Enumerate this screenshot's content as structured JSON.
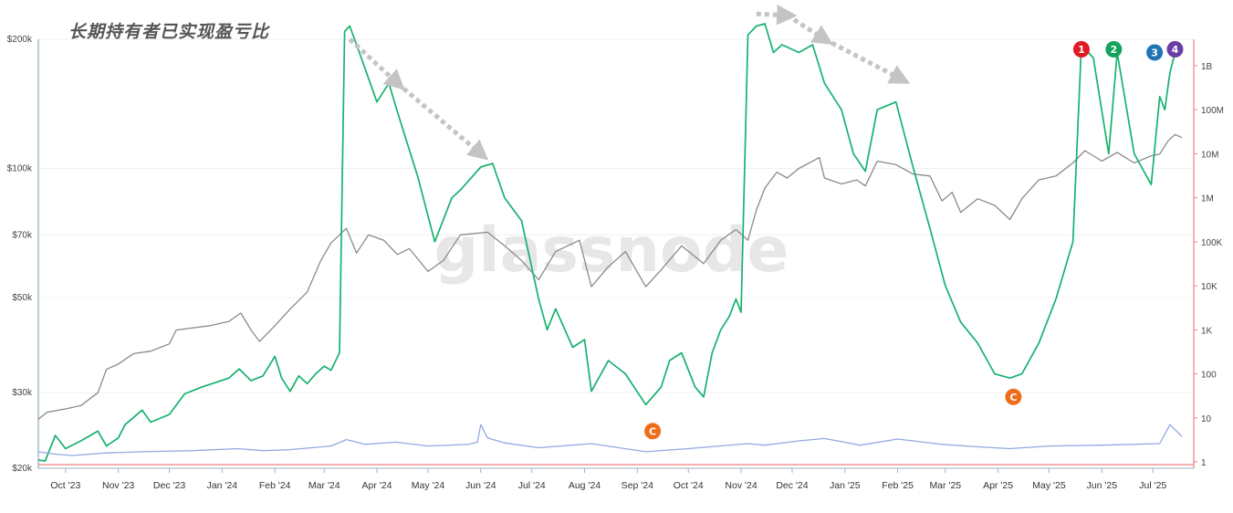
{
  "title": "长期持有者已实现盈亏比",
  "watermark": "glassnode",
  "colors": {
    "green": "#16b26f",
    "gray": "#8a8a8a",
    "blue": "#93a9e3",
    "red_axis": "#f08080",
    "arrow": "#c4c4c4",
    "badge_red": "#e01b24",
    "badge_green": "#13a35a",
    "badge_blue": "#1f74b5",
    "badge_purple": "#6b3da6",
    "badge_orange": "#ee6d1a"
  },
  "chart_data": {
    "type": "line",
    "title": "长期持有者已实现盈亏比",
    "x_ticks": [
      "Oct '23",
      "Nov '23",
      "Dec '23",
      "Jan '24",
      "Feb '24",
      "Mar '24",
      "Apr '24",
      "May '24",
      "Jun '24",
      "Jul '24",
      "Aug '24",
      "Sep '24",
      "Oct '24",
      "Nov '24",
      "Dec '24",
      "Jan '25",
      "Feb '25",
      "Mar '25",
      "Apr '25",
      "May '25",
      "Jun '25",
      "Jul '25"
    ],
    "x_range": [
      "2023-09-15",
      "2025-07-25"
    ],
    "y_left": {
      "scale": "log",
      "ticks": [
        "$20k",
        "$30k",
        "$50k",
        "$70k",
        "$100k",
        "$200k"
      ],
      "tick_values": [
        20000,
        30000,
        50000,
        70000,
        100000,
        200000
      ],
      "range": [
        20000,
        200000
      ]
    },
    "y_right": {
      "scale": "log",
      "ticks": [
        "1",
        "10",
        "100",
        "1K",
        "10K",
        "100K",
        "1M",
        "10M",
        "100M",
        "1B"
      ],
      "tick_values": [
        1,
        10,
        100,
        1000,
        10000,
        100000,
        1000000,
        10000000,
        100000000,
        1000000000
      ]
    },
    "series": [
      {
        "axis": "left",
        "color": "#8a8a8a",
        "points": [
          [
            "2023-09-15",
            26000
          ],
          [
            "2023-09-20",
            27000
          ],
          [
            "2023-10-01",
            27500
          ],
          [
            "2023-10-10",
            28000
          ],
          [
            "2023-10-20",
            30000
          ],
          [
            "2023-10-25",
            34000
          ],
          [
            "2023-11-01",
            35000
          ],
          [
            "2023-11-10",
            37000
          ],
          [
            "2023-11-20",
            37500
          ],
          [
            "2023-12-01",
            39000
          ],
          [
            "2023-12-05",
            42000
          ],
          [
            "2023-12-15",
            42500
          ],
          [
            "2023-12-25",
            43000
          ],
          [
            "2024-01-05",
            44000
          ],
          [
            "2024-01-12",
            46000
          ],
          [
            "2024-01-18",
            42000
          ],
          [
            "2024-01-23",
            39500
          ],
          [
            "2024-02-01",
            43000
          ],
          [
            "2024-02-10",
            47000
          ],
          [
            "2024-02-20",
            51500
          ],
          [
            "2024-02-28",
            61000
          ],
          [
            "2024-03-05",
            67000
          ],
          [
            "2024-03-10",
            70000
          ],
          [
            "2024-03-14",
            72500
          ],
          [
            "2024-03-20",
            63500
          ],
          [
            "2024-03-27",
            70000
          ],
          [
            "2024-04-05",
            68000
          ],
          [
            "2024-04-13",
            63000
          ],
          [
            "2024-04-20",
            65000
          ],
          [
            "2024-05-01",
            57500
          ],
          [
            "2024-05-10",
            61000
          ],
          [
            "2024-05-20",
            70000
          ],
          [
            "2024-06-05",
            71000
          ],
          [
            "2024-06-15",
            66000
          ],
          [
            "2024-06-25",
            61000
          ],
          [
            "2024-07-05",
            55000
          ],
          [
            "2024-07-15",
            64000
          ],
          [
            "2024-07-29",
            68000
          ],
          [
            "2024-08-05",
            53000
          ],
          [
            "2024-08-15",
            59000
          ],
          [
            "2024-08-25",
            64000
          ],
          [
            "2024-09-06",
            53000
          ],
          [
            "2024-09-15",
            58000
          ],
          [
            "2024-09-27",
            66000
          ],
          [
            "2024-10-10",
            60000
          ],
          [
            "2024-10-20",
            68000
          ],
          [
            "2024-10-29",
            72000
          ],
          [
            "2024-11-05",
            68000
          ],
          [
            "2024-11-10",
            80000
          ],
          [
            "2024-11-15",
            90000
          ],
          [
            "2024-11-22",
            98000
          ],
          [
            "2024-11-28",
            95000
          ],
          [
            "2024-12-05",
            100000
          ],
          [
            "2024-12-17",
            106000
          ],
          [
            "2024-12-20",
            95000
          ],
          [
            "2024-12-30",
            92000
          ],
          [
            "2025-01-08",
            94000
          ],
          [
            "2025-01-13",
            91000
          ],
          [
            "2025-01-20",
            104000
          ],
          [
            "2025-01-31",
            102000
          ],
          [
            "2025-02-10",
            97000
          ],
          [
            "2025-02-20",
            96000
          ],
          [
            "2025-02-27",
            84000
          ],
          [
            "2025-03-05",
            88000
          ],
          [
            "2025-03-10",
            79000
          ],
          [
            "2025-03-20",
            85000
          ],
          [
            "2025-03-30",
            82000
          ],
          [
            "2025-04-08",
            76000
          ],
          [
            "2025-04-15",
            85000
          ],
          [
            "2025-04-25",
            94000
          ],
          [
            "2025-05-05",
            96000
          ],
          [
            "2025-05-15",
            103000
          ],
          [
            "2025-05-22",
            110000
          ],
          [
            "2025-06-01",
            104000
          ],
          [
            "2025-06-10",
            109000
          ],
          [
            "2025-06-20",
            103000
          ],
          [
            "2025-06-30",
            107000
          ],
          [
            "2025-07-05",
            108000
          ],
          [
            "2025-07-10",
            116000
          ],
          [
            "2025-07-14",
            120000
          ],
          [
            "2025-07-18",
            118000
          ]
        ]
      },
      {
        "axis": "right",
        "color": "#16b26f",
        "points": [
          [
            "2023-09-15",
            1.1
          ],
          [
            "2023-09-19",
            1.05
          ],
          [
            "2023-09-25",
            4
          ],
          [
            "2023-10-01",
            2
          ],
          [
            "2023-10-10",
            3
          ],
          [
            "2023-10-20",
            5
          ],
          [
            "2023-10-25",
            2.3
          ],
          [
            "2023-11-01",
            3.5
          ],
          [
            "2023-11-05",
            7
          ],
          [
            "2023-11-15",
            15
          ],
          [
            "2023-11-20",
            8
          ],
          [
            "2023-12-01",
            12
          ],
          [
            "2023-12-10",
            35
          ],
          [
            "2023-12-20",
            50
          ],
          [
            "2024-01-05",
            80
          ],
          [
            "2024-01-11",
            130
          ],
          [
            "2024-01-18",
            70
          ],
          [
            "2024-01-25",
            90
          ],
          [
            "2024-02-01",
            250
          ],
          [
            "2024-02-05",
            80
          ],
          [
            "2024-02-10",
            40
          ],
          [
            "2024-02-15",
            90
          ],
          [
            "2024-02-20",
            60
          ],
          [
            "2024-02-25",
            100
          ],
          [
            "2024-03-01",
            150
          ],
          [
            "2024-03-05",
            120
          ],
          [
            "2024-03-10",
            300
          ],
          [
            "2024-03-13",
            6000000000
          ],
          [
            "2024-03-16",
            8000000000
          ],
          [
            "2024-03-20",
            3000000000
          ],
          [
            "2024-04-01",
            150000000
          ],
          [
            "2024-04-08",
            400000000
          ],
          [
            "2024-04-13",
            90000000
          ],
          [
            "2024-04-25",
            3000000
          ],
          [
            "2024-05-05",
            100000
          ],
          [
            "2024-05-15",
            1000000
          ],
          [
            "2024-05-20",
            1500000
          ],
          [
            "2024-06-01",
            5000000
          ],
          [
            "2024-06-08",
            6000000
          ],
          [
            "2024-06-15",
            1000000
          ],
          [
            "2024-06-25",
            300000
          ],
          [
            "2024-07-05",
            5000
          ],
          [
            "2024-07-10",
            1000
          ],
          [
            "2024-07-15",
            3000
          ],
          [
            "2024-07-25",
            400
          ],
          [
            "2024-08-01",
            600
          ],
          [
            "2024-08-05",
            40
          ],
          [
            "2024-08-15",
            200
          ],
          [
            "2024-08-25",
            100
          ],
          [
            "2024-09-06",
            20
          ],
          [
            "2024-09-10",
            30
          ],
          [
            "2024-09-15",
            50
          ],
          [
            "2024-09-20",
            200
          ],
          [
            "2024-09-27",
            300
          ],
          [
            "2024-10-05",
            50
          ],
          [
            "2024-10-10",
            30
          ],
          [
            "2024-10-15",
            300
          ],
          [
            "2024-10-20",
            1000
          ],
          [
            "2024-10-25",
            2000
          ],
          [
            "2024-10-29",
            5000
          ],
          [
            "2024-11-01",
            2500
          ],
          [
            "2024-11-05",
            5000000000
          ],
          [
            "2024-11-10",
            8000000000
          ],
          [
            "2024-11-15",
            9000000000
          ],
          [
            "2024-11-20",
            2000000000
          ],
          [
            "2024-11-25",
            3000000000
          ],
          [
            "2024-12-05",
            2000000000
          ],
          [
            "2024-12-13",
            3000000000
          ],
          [
            "2024-12-20",
            400000000
          ],
          [
            "2024-12-30",
            100000000
          ],
          [
            "2025-01-06",
            10000000
          ],
          [
            "2025-01-13",
            4000000
          ],
          [
            "2025-01-20",
            100000000
          ],
          [
            "2025-01-31",
            150000000
          ],
          [
            "2025-02-10",
            5000000
          ],
          [
            "2025-02-20",
            200000
          ],
          [
            "2025-03-01",
            10000
          ],
          [
            "2025-03-10",
            1500
          ],
          [
            "2025-03-20",
            500
          ],
          [
            "2025-03-30",
            100
          ],
          [
            "2025-04-08",
            80
          ],
          [
            "2025-04-15",
            100
          ],
          [
            "2025-04-25",
            500
          ],
          [
            "2025-05-05",
            5000
          ],
          [
            "2025-05-15",
            100000
          ],
          [
            "2025-05-20",
            3000000000
          ],
          [
            "2025-05-27",
            1500000000
          ],
          [
            "2025-06-05",
            10000000
          ],
          [
            "2025-06-10",
            2000000000
          ],
          [
            "2025-06-20",
            10000000
          ],
          [
            "2025-06-30",
            2000000
          ],
          [
            "2025-07-05",
            200000000
          ],
          [
            "2025-07-08",
            100000000
          ],
          [
            "2025-07-11",
            700000000
          ],
          [
            "2025-07-14",
            2000000000
          ]
        ]
      },
      {
        "axis": "right",
        "color": "#93a9e3",
        "points": [
          [
            "2023-09-15",
            1.7
          ],
          [
            "2023-09-25",
            1.5
          ],
          [
            "2023-10-05",
            1.4
          ],
          [
            "2023-10-25",
            1.6
          ],
          [
            "2023-11-15",
            1.7
          ],
          [
            "2023-12-15",
            1.8
          ],
          [
            "2024-01-10",
            2.0
          ],
          [
            "2024-01-25",
            1.8
          ],
          [
            "2024-02-10",
            1.9
          ],
          [
            "2024-03-05",
            2.3
          ],
          [
            "2024-03-14",
            3.2
          ],
          [
            "2024-03-25",
            2.5
          ],
          [
            "2024-04-12",
            2.8
          ],
          [
            "2024-05-01",
            2.3
          ],
          [
            "2024-05-25",
            2.5
          ],
          [
            "2024-05-30",
            2.8
          ],
          [
            "2024-06-01",
            7.0
          ],
          [
            "2024-06-05",
            3.5
          ],
          [
            "2024-06-15",
            2.7
          ],
          [
            "2024-07-05",
            2.1
          ],
          [
            "2024-08-05",
            2.6
          ],
          [
            "2024-09-06",
            1.7
          ],
          [
            "2024-10-01",
            2.0
          ],
          [
            "2024-11-05",
            2.6
          ],
          [
            "2024-11-15",
            2.4
          ],
          [
            "2024-12-05",
            3.0
          ],
          [
            "2024-12-20",
            3.4
          ],
          [
            "2025-01-10",
            2.4
          ],
          [
            "2025-02-01",
            3.3
          ],
          [
            "2025-02-27",
            2.5
          ],
          [
            "2025-03-20",
            2.2
          ],
          [
            "2025-04-08",
            2.0
          ],
          [
            "2025-05-01",
            2.3
          ],
          [
            "2025-06-01",
            2.4
          ],
          [
            "2025-07-05",
            2.6
          ],
          [
            "2025-07-11",
            7.0
          ],
          [
            "2025-07-18",
            3.8
          ]
        ]
      }
    ],
    "annotations": [
      {
        "type": "arrow",
        "from": [
          "2024-03-16",
          4000000000
        ],
        "to": [
          "2024-04-13",
          400000000
        ]
      },
      {
        "type": "arrow",
        "from": [
          "2024-04-13",
          400000000
        ],
        "to": [
          "2024-06-01",
          10000000
        ]
      },
      {
        "type": "arrow",
        "from": [
          "2024-11-10",
          15000000000
        ],
        "to": [
          "2024-11-28",
          14000000000
        ]
      },
      {
        "type": "arrow",
        "from": [
          "2024-11-28",
          14000000000
        ],
        "to": [
          "2024-12-20",
          4000000000
        ]
      },
      {
        "type": "arrow",
        "from": [
          "2024-12-20",
          4000000000
        ],
        "to": [
          "2025-02-03",
          500000000
        ]
      },
      {
        "type": "badge",
        "label": "1",
        "color": "#e01b24",
        "at": [
          "2025-05-20",
          5000000000
        ]
      },
      {
        "type": "badge",
        "label": "2",
        "color": "#13a35a",
        "at": [
          "2025-06-08",
          2500000000
        ]
      },
      {
        "type": "badge",
        "label": "3",
        "color": "#1f74b5",
        "at": [
          "2025-07-02",
          2000000000
        ]
      },
      {
        "type": "badge",
        "label": "4",
        "color": "#6b3da6",
        "at": [
          "2025-07-14",
          20000000000
        ]
      },
      {
        "type": "badge",
        "label": "C",
        "color": "#ee6d1a",
        "at": [
          "2024-09-10",
          5
        ]
      },
      {
        "type": "badge",
        "label": "C",
        "color": "#ee6d1a",
        "at": [
          "2025-04-10",
          30
        ]
      }
    ]
  }
}
